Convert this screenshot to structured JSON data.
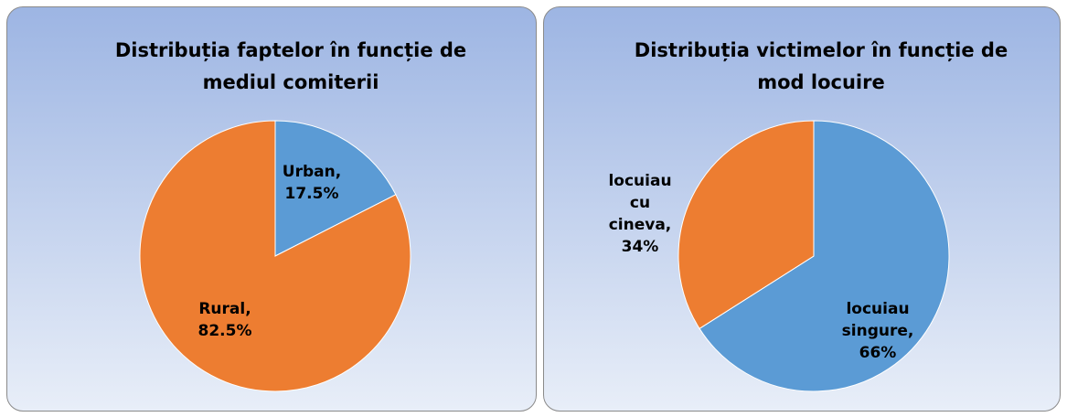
{
  "chart_data": [
    {
      "type": "pie",
      "title": "Distribuția faptelor în funcție de mediul comiterii",
      "categories": [
        "Urban,",
        "Rural,"
      ],
      "values": [
        17.5,
        82.5
      ],
      "value_labels": [
        "17.5%",
        "82.5%"
      ],
      "colors": [
        "#5b9bd5",
        "#ed7d31"
      ]
    },
    {
      "type": "pie",
      "title": "Distribuția victimelor în funcție de mod locuire",
      "categories": [
        "locuiau singure,",
        "locuiau cu cineva,"
      ],
      "values": [
        66,
        34
      ],
      "value_labels": [
        "66%",
        "34%"
      ],
      "colors": [
        "#5b9bd5",
        "#ed7d31"
      ]
    }
  ]
}
